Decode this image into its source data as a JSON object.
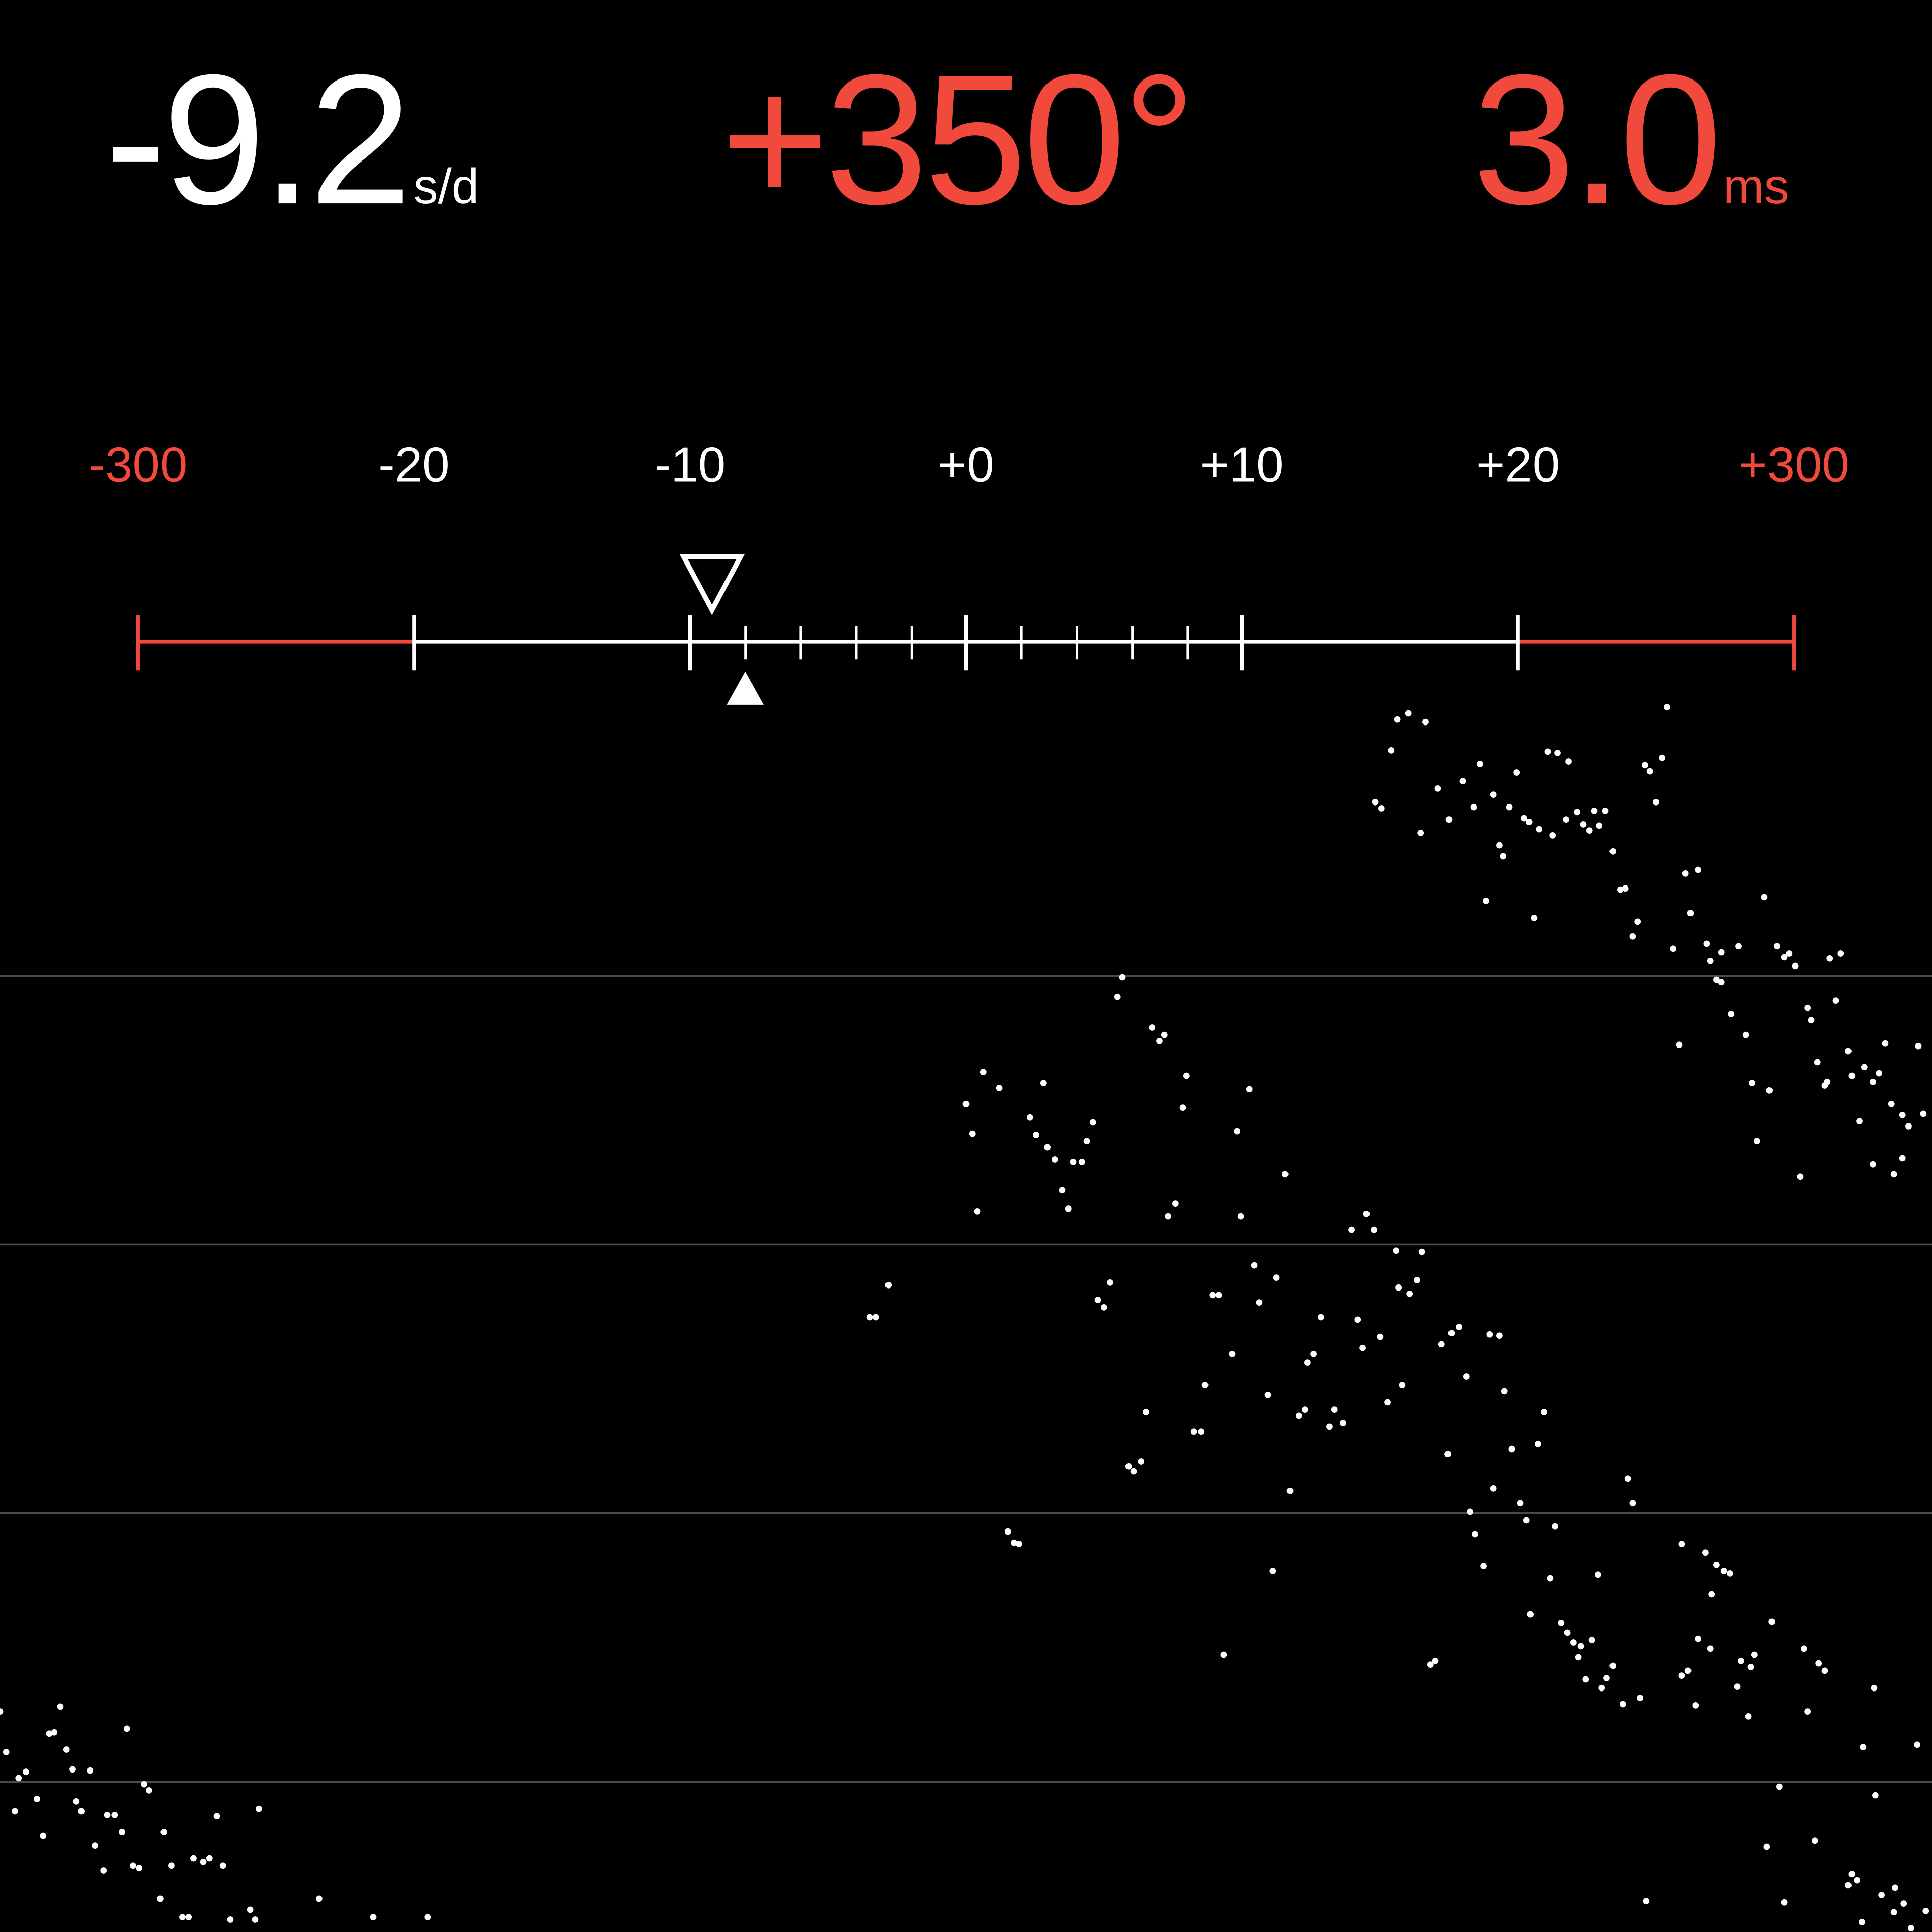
{
  "readouts": {
    "rate": {
      "value": "-9.2",
      "unit": "s/d",
      "color": "#ffffff"
    },
    "amplitude": {
      "value": "+350°",
      "color": "#f2493d"
    },
    "beat_error": {
      "value": "3.0",
      "unit": "ms",
      "color": "#f2493d"
    }
  },
  "scale": {
    "labels": [
      {
        "text": "-300",
        "color": "#f2493d"
      },
      {
        "text": "-20",
        "color": "#ffffff"
      },
      {
        "text": "-10",
        "color": "#ffffff"
      },
      {
        "text": "+0",
        "color": "#ffffff"
      },
      {
        "text": "+10",
        "color": "#ffffff"
      },
      {
        "text": "+20",
        "color": "#ffffff"
      },
      {
        "text": "+300",
        "color": "#f2493d"
      }
    ],
    "current_rate": -9.2,
    "marker_value": -8
  },
  "colors": {
    "accent": "#f2493d",
    "grid": "#4a4a4a",
    "background": "#000000"
  }
}
